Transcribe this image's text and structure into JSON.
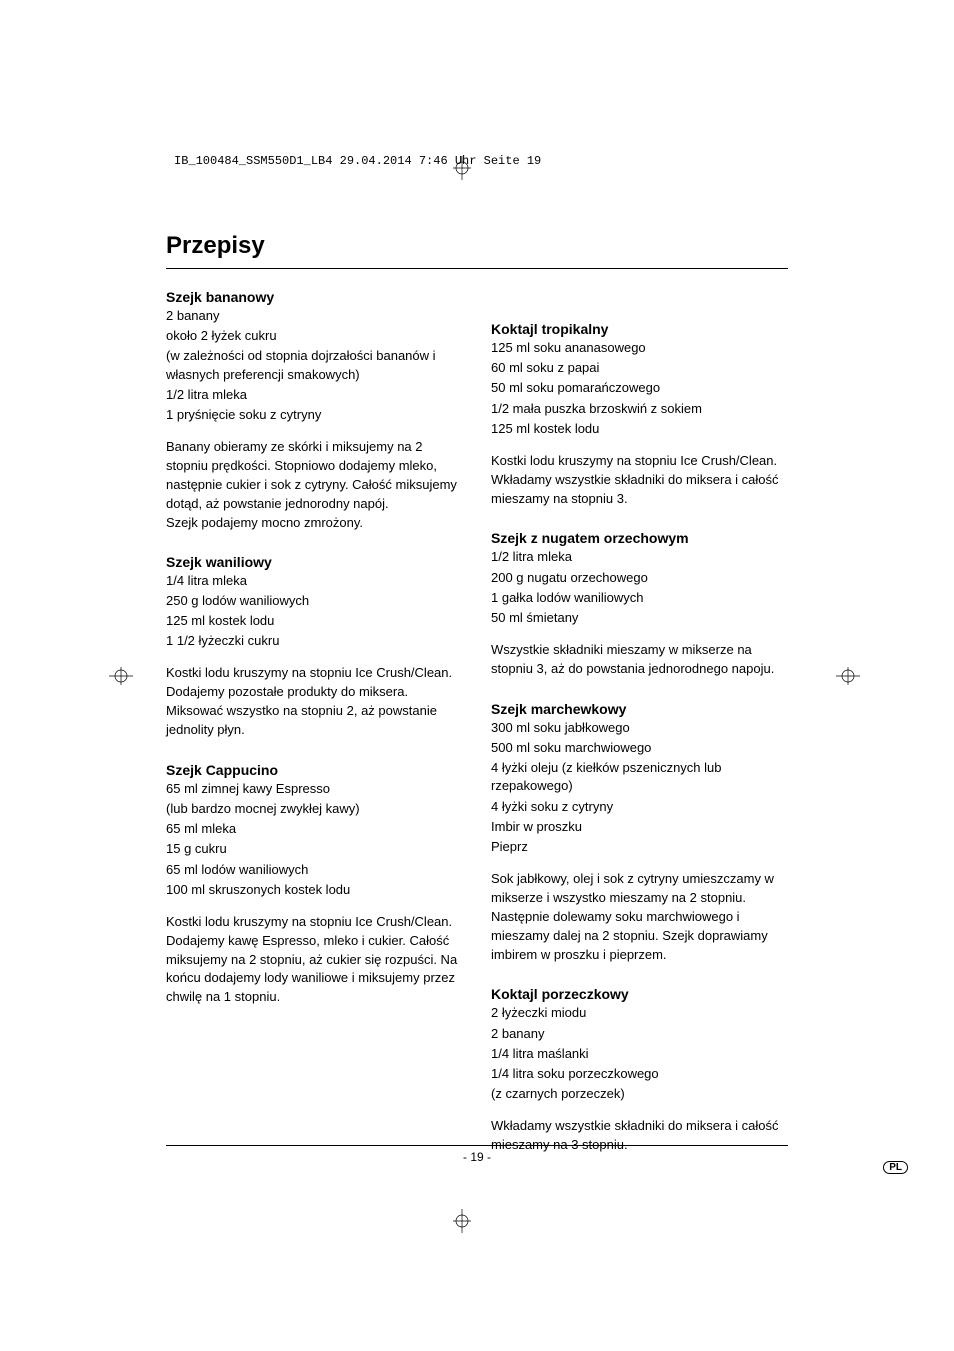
{
  "header": {
    "filename_line": "IB_100484_SSM550D1_LB4  29.04.2014  7:46 Uhr  Seite 19"
  },
  "title": "Przepisy",
  "left_column": [
    {
      "heading": "Szejk bananowy",
      "lines": [
        "2 banany",
        "około 2 łyżek cukru",
        "(w zależności od stopnia dojrzałości bananów i własnych preferencji smakowych)",
        "1/2 litra mleka",
        "1 pryśnięcie soku z cytryny"
      ],
      "paragraphs": [
        "Banany obieramy ze skórki i miksujemy na 2 stopniu prędkości. Stopniowo dodajemy mleko, następnie cukier i sok z cytryny. Całość miksujemy dotąd, aż powstanie jednorodny napój.",
        "Szejk podajemy mocno zmrożony."
      ]
    },
    {
      "heading": "Szejk waniliowy",
      "lines": [
        "1/4 litra mleka",
        "250 g lodów waniliowych",
        "125 ml kostek lodu",
        "1 1/2 łyżeczki cukru"
      ],
      "paragraphs": [
        "Kostki lodu kruszymy na stopniu Ice Crush/Clean. Dodajemy pozostałe produkty do miksera. Miksować wszystko na stopniu 2, aż powstanie jednolity płyn."
      ]
    },
    {
      "heading": "Szejk Cappucino",
      "lines": [
        "65 ml zimnej kawy Espresso",
        "(lub bardzo mocnej zwykłej kawy)",
        "65 ml mleka",
        "15 g cukru",
        "65 ml lodów waniliowych",
        "100 ml skruszonych kostek lodu"
      ],
      "paragraphs": [
        "Kostki lodu kruszymy na stopniu Ice Crush/Clean. Dodajemy kawę Espresso, mleko i cukier. Całość miksujemy na 2 stopniu, aż cukier się rozpuści. Na końcu dodajemy lody waniliowe i miksujemy przez chwilę na 1 stopniu."
      ]
    }
  ],
  "right_column": [
    {
      "heading": "Koktajl tropikalny",
      "lines": [
        "125 ml soku ananasowego",
        "60 ml soku z papai",
        "50 ml soku pomarańczowego",
        "1/2 mała puszka brzoskwiń z sokiem",
        "125 ml kostek lodu"
      ],
      "paragraphs": [
        "Kostki lodu kruszymy na stopniu Ice Crush/Clean. Wkładamy wszystkie składniki do miksera i całość mieszamy na stopniu 3."
      ]
    },
    {
      "heading": "Szejk z nugatem orzechowym",
      "lines": [
        "1/2 litra mleka",
        "200 g nugatu orzechowego",
        "1 gałka lodów waniliowych",
        "50 ml śmietany"
      ],
      "paragraphs": [
        "Wszystkie składniki mieszamy w mikserze na stopniu 3, aż do powstania jednorodnego napoju."
      ]
    },
    {
      "heading": "Szejk marchewkowy",
      "lines": [
        "300 ml soku jabłkowego",
        "500 ml soku marchwiowego",
        "4 łyżki oleju (z kiełków pszenicznych lub rzepakowego)",
        "4 łyżki soku z cytryny",
        "Imbir w proszku",
        "Pieprz"
      ],
      "paragraphs": [
        "Sok jabłkowy, olej i sok z cytryny umieszczamy w mikserze i wszystko mieszamy na 2 stopniu. Następnie dolewamy soku marchwiowego i mieszamy dalej na 2 stopniu. Szejk doprawiamy imbirem w proszku i pieprzem."
      ]
    },
    {
      "heading": "Koktajl porzeczkowy",
      "lines": [
        "2 łyżeczki miodu",
        "2 banany",
        "1/4 litra maślanki",
        "1/4 litra soku porzeczkowego",
        "(z czarnych porzeczek)"
      ],
      "paragraphs": [
        "Wkładamy wszystkie składniki do miksera i całość mieszamy na 3 stopniu."
      ]
    }
  ],
  "footer": {
    "page_number": "- 19 -",
    "lang": "PL"
  }
}
